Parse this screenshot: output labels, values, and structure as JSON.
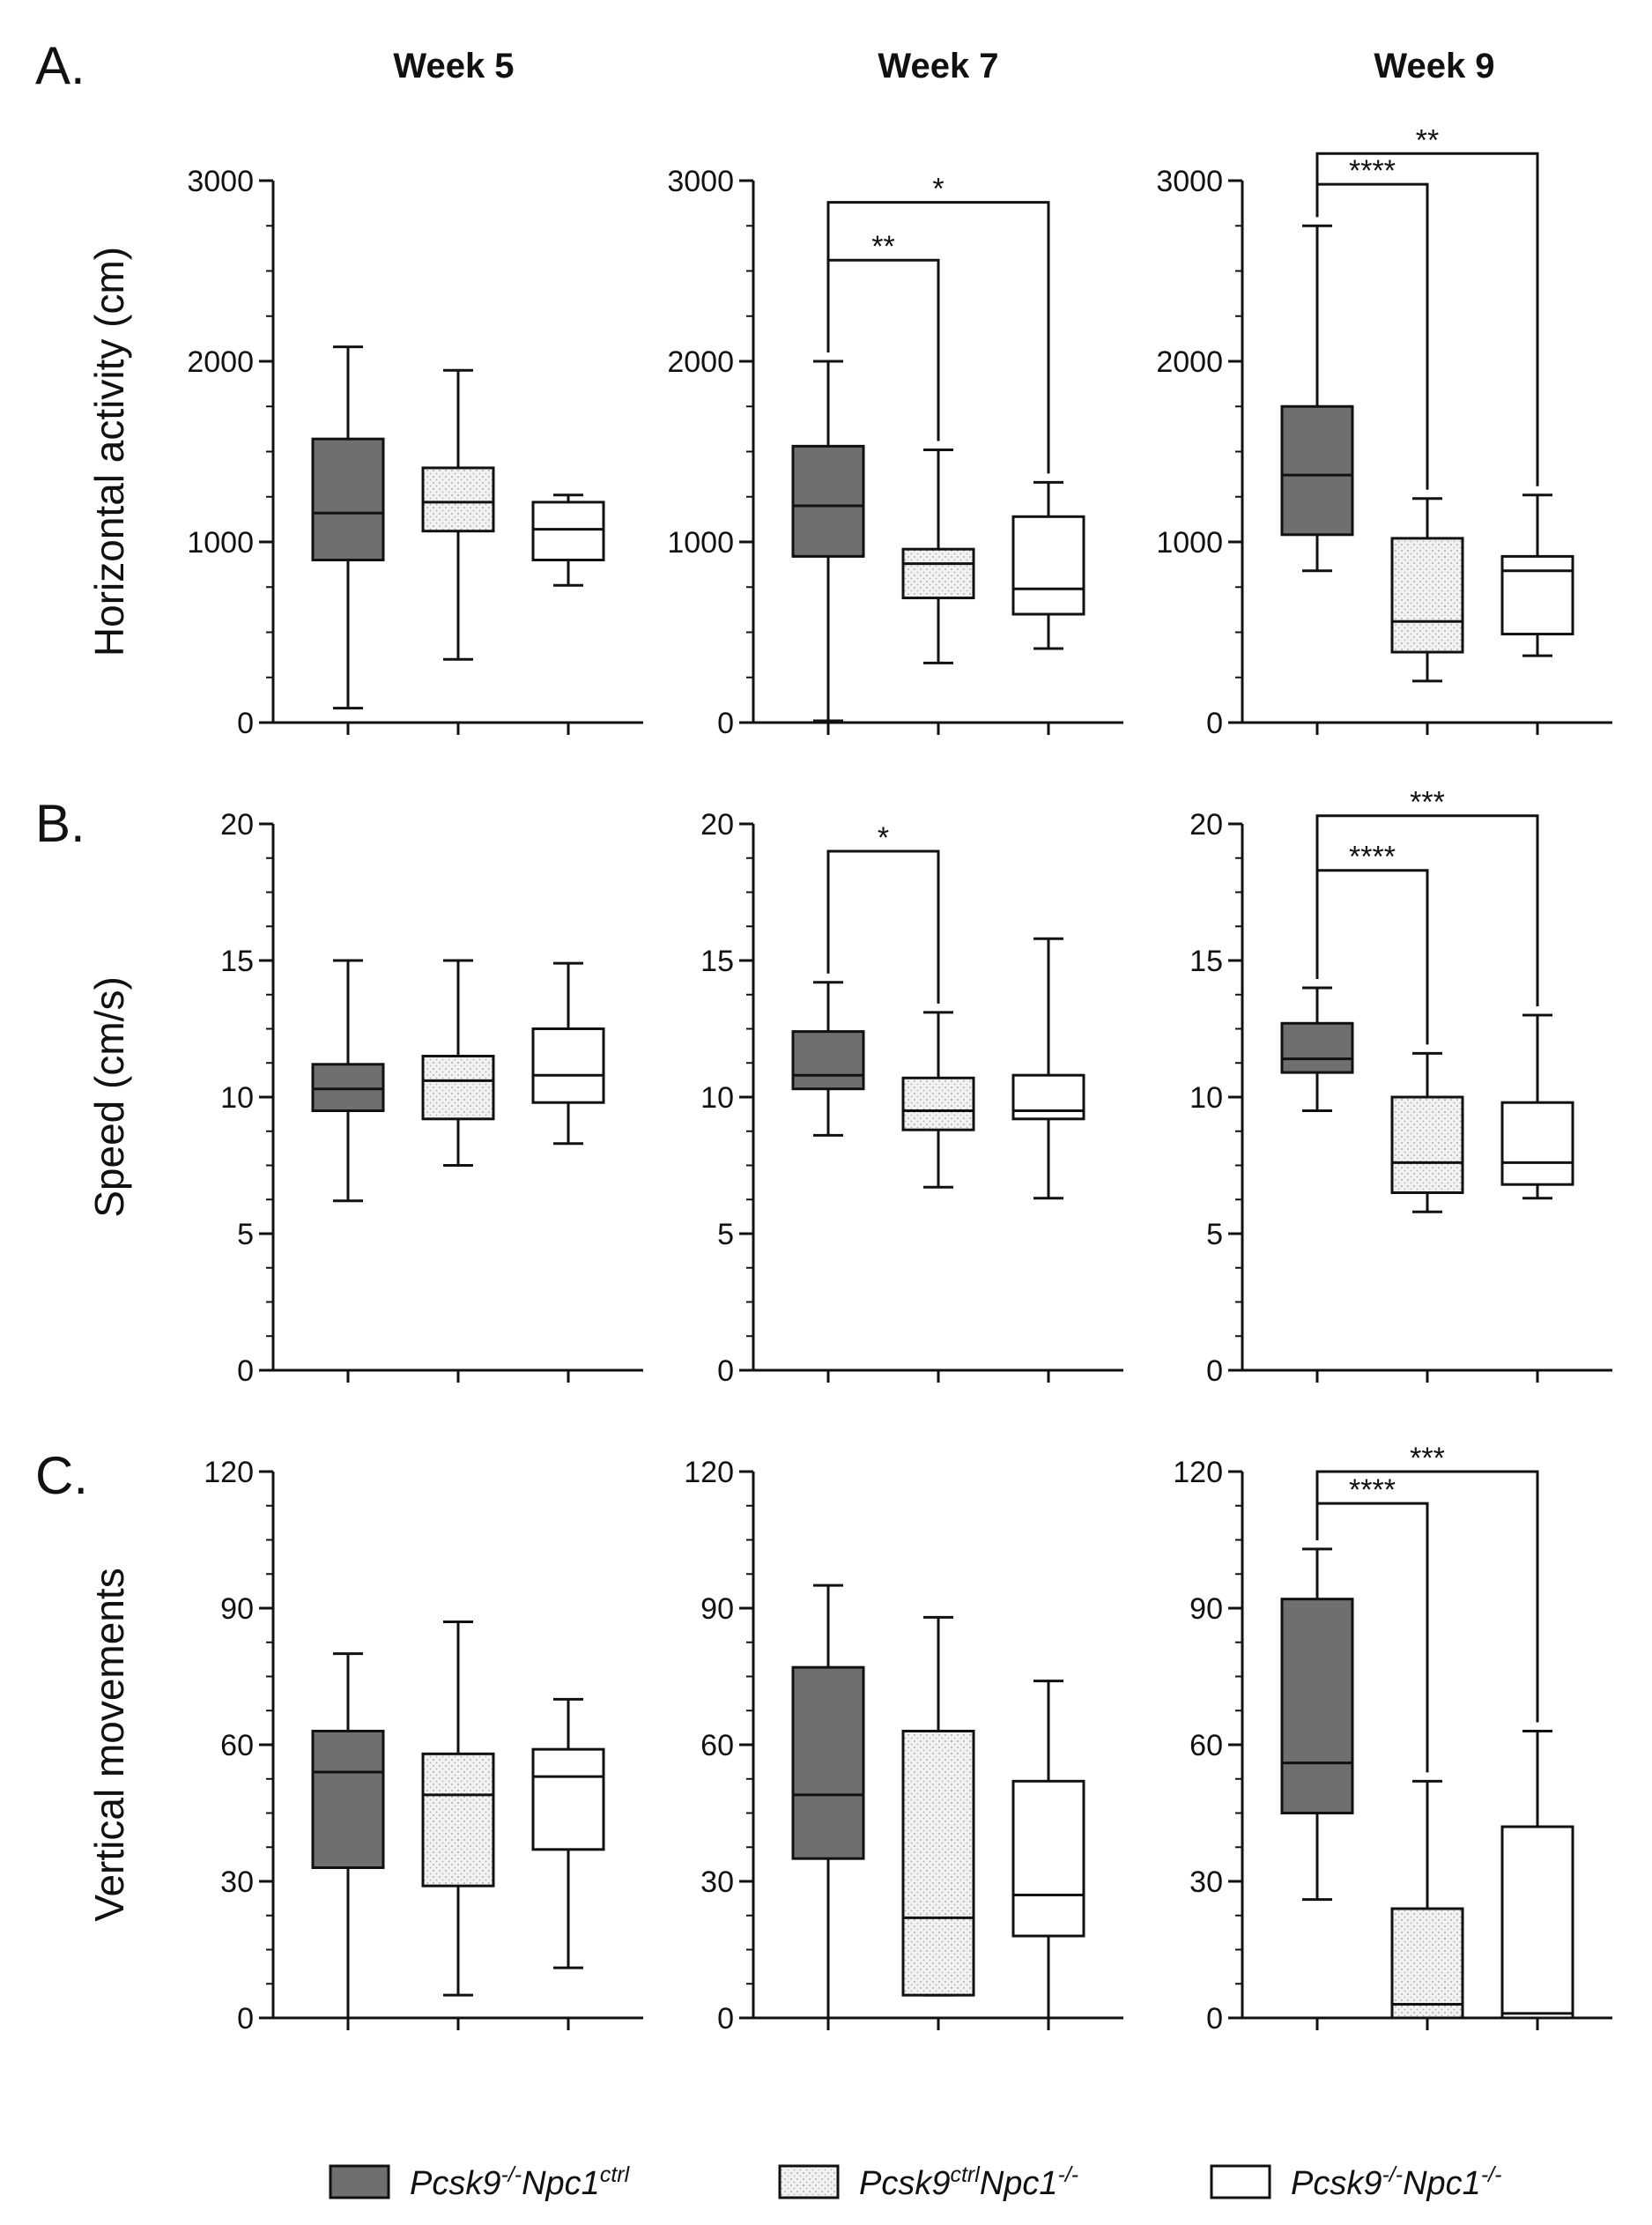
{
  "figure": {
    "column_titles": [
      "Week 5",
      "Week 7",
      "Week 9"
    ],
    "row_labels": [
      "A.",
      "B.",
      "C."
    ],
    "colors": {
      "group1": "#6f6f6f",
      "group2": "#f0f0f0",
      "group3": "#ffffff",
      "stroke": "#111111"
    },
    "legend": [
      {
        "name": "Pcsk9-/-Npc1ctrl",
        "parts": [
          [
            "Pcsk9",
            "n"
          ],
          [
            "-/-",
            "s"
          ],
          [
            "Npc1",
            "n"
          ],
          [
            "ctrl",
            "s"
          ]
        ],
        "pattern": "group1"
      },
      {
        "name": "Pcsk9ctrlNpc1-/-",
        "parts": [
          [
            "Pcsk9",
            "n"
          ],
          [
            "ctrl",
            "s"
          ],
          [
            "Npc1",
            "n"
          ],
          [
            "-/-",
            "s"
          ]
        ],
        "pattern": "group2"
      },
      {
        "name": "Pcsk9-/-Npc1-/-",
        "parts": [
          [
            "Pcsk9",
            "n"
          ],
          [
            "-/-",
            "s"
          ],
          [
            "Npc1",
            "n"
          ],
          [
            "-/-",
            "s"
          ]
        ],
        "pattern": "group3"
      }
    ]
  },
  "chart_data": [
    {
      "type": "box",
      "row": 0,
      "col": 0,
      "ylabel": "Horizontal activity (cm)",
      "ylim": [
        0,
        3000
      ],
      "ticks": [
        0,
        1000,
        2000,
        3000
      ],
      "tick_labels": [
        "0",
        "1000",
        "2000",
        "3000"
      ],
      "boxes": [
        {
          "group": "Pcsk9-/-Npc1ctrl",
          "min": 80,
          "q1": 900,
          "median": 1160,
          "q3": 1570,
          "max": 2080
        },
        {
          "group": "Pcsk9ctrlNpc1-/-",
          "min": 350,
          "q1": 1060,
          "median": 1220,
          "q3": 1410,
          "max": 1950
        },
        {
          "group": "Pcsk9-/-Npc1-/-",
          "min": 760,
          "q1": 900,
          "median": 1070,
          "q3": 1220,
          "max": 1260
        }
      ],
      "significance": []
    },
    {
      "type": "box",
      "row": 0,
      "col": 1,
      "ylabel": "",
      "ylim": [
        0,
        3000
      ],
      "ticks": [
        0,
        1000,
        2000,
        3000
      ],
      "tick_labels": [
        "0",
        "1000",
        "2000",
        "3000"
      ],
      "boxes": [
        {
          "group": "Pcsk9-/-Npc1ctrl",
          "min": 10,
          "q1": 920,
          "median": 1200,
          "q3": 1530,
          "max": 2000
        },
        {
          "group": "Pcsk9ctrlNpc1-/-",
          "min": 330,
          "q1": 690,
          "median": 880,
          "q3": 960,
          "max": 1510
        },
        {
          "group": "Pcsk9-/-Npc1-/-",
          "min": 410,
          "q1": 600,
          "median": 740,
          "q3": 1140,
          "max": 1330
        }
      ],
      "significance": [
        {
          "from": 0,
          "to": 2,
          "y": 2880,
          "label": "*"
        },
        {
          "from": 0,
          "to": 1,
          "y": 2560,
          "label": "**"
        }
      ]
    },
    {
      "type": "box",
      "row": 0,
      "col": 2,
      "ylabel": "",
      "ylim": [
        0,
        3000
      ],
      "ticks": [
        0,
        1000,
        2000,
        3000
      ],
      "tick_labels": [
        "0",
        "1000",
        "2000",
        "3000"
      ],
      "boxes": [
        {
          "group": "Pcsk9-/-Npc1ctrl",
          "min": 840,
          "q1": 1040,
          "median": 1370,
          "q3": 1750,
          "max": 2750
        },
        {
          "group": "Pcsk9ctrlNpc1-/-",
          "min": 230,
          "q1": 390,
          "median": 560,
          "q3": 1020,
          "max": 1240
        },
        {
          "group": "Pcsk9-/-Npc1-/-",
          "min": 370,
          "q1": 490,
          "median": 840,
          "q3": 920,
          "max": 1260
        }
      ],
      "significance": [
        {
          "from": 0,
          "to": 2,
          "y": 3150,
          "label": "**"
        },
        {
          "from": 0,
          "to": 1,
          "y": 2980,
          "label": "****"
        }
      ]
    },
    {
      "type": "box",
      "row": 1,
      "col": 0,
      "ylabel": "Speed (cm/s)",
      "ylim": [
        0,
        20
      ],
      "ticks": [
        0,
        5,
        10,
        15,
        20
      ],
      "tick_labels": [
        "0",
        "5",
        "10",
        "15",
        "20"
      ],
      "boxes": [
        {
          "group": "Pcsk9-/-Npc1ctrl",
          "min": 6.2,
          "q1": 9.5,
          "median": 10.3,
          "q3": 11.2,
          "max": 15.0
        },
        {
          "group": "Pcsk9ctrlNpc1-/-",
          "min": 7.5,
          "q1": 9.2,
          "median": 10.6,
          "q3": 11.5,
          "max": 15.0
        },
        {
          "group": "Pcsk9-/-Npc1-/-",
          "min": 8.3,
          "q1": 9.8,
          "median": 10.8,
          "q3": 12.5,
          "max": 14.9
        }
      ],
      "significance": []
    },
    {
      "type": "box",
      "row": 1,
      "col": 1,
      "ylabel": "",
      "ylim": [
        0,
        20
      ],
      "ticks": [
        0,
        5,
        10,
        15,
        20
      ],
      "tick_labels": [
        "0",
        "5",
        "10",
        "15",
        "20"
      ],
      "boxes": [
        {
          "group": "Pcsk9-/-Npc1ctrl",
          "min": 8.6,
          "q1": 10.3,
          "median": 10.8,
          "q3": 12.4,
          "max": 14.2
        },
        {
          "group": "Pcsk9ctrlNpc1-/-",
          "min": 6.7,
          "q1": 8.8,
          "median": 9.5,
          "q3": 10.7,
          "max": 13.1
        },
        {
          "group": "Pcsk9-/-Npc1-/-",
          "min": 6.3,
          "q1": 9.2,
          "median": 9.5,
          "q3": 10.8,
          "max": 15.8
        }
      ],
      "significance": [
        {
          "from": 0,
          "to": 1,
          "y": 19.0,
          "label": "*"
        }
      ]
    },
    {
      "type": "box",
      "row": 1,
      "col": 2,
      "ylabel": "",
      "ylim": [
        0,
        20
      ],
      "ticks": [
        0,
        5,
        10,
        15,
        20
      ],
      "tick_labels": [
        "0",
        "5",
        "10",
        "15",
        "20"
      ],
      "boxes": [
        {
          "group": "Pcsk9-/-Npc1ctrl",
          "min": 9.5,
          "q1": 10.9,
          "median": 11.4,
          "q3": 12.7,
          "max": 14.0
        },
        {
          "group": "Pcsk9ctrlNpc1-/-",
          "min": 5.8,
          "q1": 6.5,
          "median": 7.6,
          "q3": 10.0,
          "max": 11.6
        },
        {
          "group": "Pcsk9-/-Npc1-/-",
          "min": 6.3,
          "q1": 6.8,
          "median": 7.6,
          "q3": 9.8,
          "max": 13.0
        }
      ],
      "significance": [
        {
          "from": 0,
          "to": 2,
          "y": 20.3,
          "label": "***"
        },
        {
          "from": 0,
          "to": 1,
          "y": 18.3,
          "label": "****"
        }
      ]
    },
    {
      "type": "box",
      "row": 2,
      "col": 0,
      "ylabel": "Vertical movements",
      "ylim": [
        0,
        120
      ],
      "ticks": [
        0,
        30,
        60,
        90,
        120
      ],
      "tick_labels": [
        "0",
        "30",
        "60",
        "90",
        "120"
      ],
      "boxes": [
        {
          "group": "Pcsk9-/-Npc1ctrl",
          "min": 0,
          "q1": 33,
          "median": 54,
          "q3": 63,
          "max": 80
        },
        {
          "group": "Pcsk9ctrlNpc1-/-",
          "min": 5,
          "q1": 29,
          "median": 49,
          "q3": 58,
          "max": 87
        },
        {
          "group": "Pcsk9-/-Npc1-/-",
          "min": 11,
          "q1": 37,
          "median": 53,
          "q3": 59,
          "max": 70
        }
      ],
      "significance": []
    },
    {
      "type": "box",
      "row": 2,
      "col": 1,
      "ylabel": "",
      "ylim": [
        0,
        120
      ],
      "ticks": [
        0,
        30,
        60,
        90,
        120
      ],
      "tick_labels": [
        "0",
        "30",
        "60",
        "90",
        "120"
      ],
      "boxes": [
        {
          "group": "Pcsk9-/-Npc1ctrl",
          "min": 0,
          "q1": 35,
          "median": 49,
          "q3": 77,
          "max": 95
        },
        {
          "group": "Pcsk9ctrlNpc1-/-",
          "min": 5,
          "q1": 5,
          "median": 22,
          "q3": 63,
          "max": 88
        },
        {
          "group": "Pcsk9-/-Npc1-/-",
          "min": 0,
          "q1": 18,
          "median": 27,
          "q3": 52,
          "max": 74
        }
      ],
      "significance": []
    },
    {
      "type": "box",
      "row": 2,
      "col": 2,
      "ylabel": "",
      "ylim": [
        0,
        120
      ],
      "ticks": [
        0,
        30,
        60,
        90,
        120
      ],
      "tick_labels": [
        "0",
        "30",
        "60",
        "90",
        "120"
      ],
      "boxes": [
        {
          "group": "Pcsk9-/-Npc1ctrl",
          "min": 26,
          "q1": 45,
          "median": 56,
          "q3": 92,
          "max": 103
        },
        {
          "group": "Pcsk9ctrlNpc1-/-",
          "min": 0,
          "q1": 0,
          "median": 3,
          "q3": 24,
          "max": 52
        },
        {
          "group": "Pcsk9-/-Npc1-/-",
          "min": 0,
          "q1": 0,
          "median": 1,
          "q3": 42,
          "max": 63
        }
      ],
      "significance": [
        {
          "from": 0,
          "to": 2,
          "y": 120,
          "label": "***"
        },
        {
          "from": 0,
          "to": 1,
          "y": 113,
          "label": "****"
        }
      ]
    }
  ]
}
